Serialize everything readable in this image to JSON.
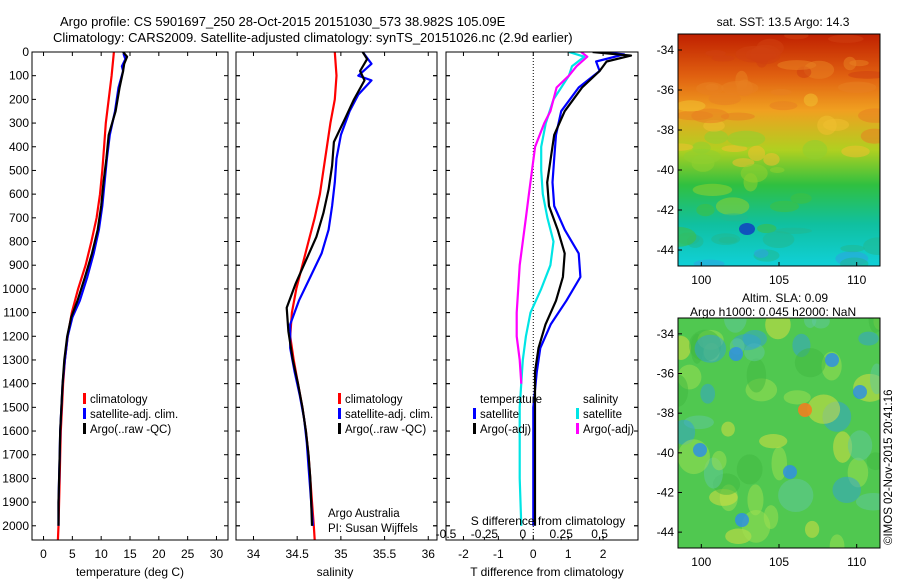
{
  "header": {
    "line1": "Argo profile: CS 5901697_250 28-Oct-2015 20151030_573 38.982S 105.09E",
    "line2": "Climatology: CARS2009. Satellite-adjusted climatology: synTS_20151026.nc (2.9d earlier)"
  },
  "side_label": "©IMOS 02-Nov-2015 20:41:16",
  "colors": {
    "climatology": "#ff0000",
    "satellite": "#0000ff",
    "argo": "#000000",
    "s_satellite": "#00e5e5",
    "s_argo": "#ff00ff"
  },
  "chart_data": [
    {
      "type": "line",
      "id": "temperature",
      "xlabel": "temperature (deg C)",
      "xlim": [
        -2,
        32
      ],
      "ylim": [
        2060,
        0
      ],
      "xticks": [
        0,
        5,
        10,
        15,
        20,
        25,
        30
      ],
      "yticks": [
        0,
        100,
        200,
        300,
        400,
        500,
        600,
        700,
        800,
        900,
        1000,
        1100,
        1200,
        1300,
        1400,
        1500,
        1600,
        1700,
        1800,
        1900,
        2000
      ],
      "legend": [
        "climatology",
        "satellite-adj. clim.",
        "Argo(..raw -QC)"
      ],
      "series": [
        {
          "name": "climatology",
          "color": "#ff0000",
          "points": [
            [
              12.2,
              0
            ],
            [
              11.8,
              100
            ],
            [
              11.3,
              200
            ],
            [
              10.8,
              300
            ],
            [
              10.5,
              400
            ],
            [
              10.2,
              500
            ],
            [
              9.8,
              600
            ],
            [
              9.2,
              700
            ],
            [
              8.3,
              800
            ],
            [
              7.3,
              900
            ],
            [
              6.0,
              1000
            ],
            [
              4.9,
              1100
            ],
            [
              4.2,
              1200
            ],
            [
              3.7,
              1300
            ],
            [
              3.4,
              1400
            ],
            [
              3.2,
              1500
            ],
            [
              3.0,
              1600
            ],
            [
              2.9,
              1700
            ],
            [
              2.8,
              1800
            ],
            [
              2.7,
              1900
            ],
            [
              2.6,
              2000
            ],
            [
              2.5,
              2060
            ]
          ]
        },
        {
          "name": "satellite-adj. clim.",
          "color": "#0000ff",
          "points": [
            [
              14.0,
              0
            ],
            [
              13.9,
              10
            ],
            [
              14.2,
              30
            ],
            [
              13.6,
              60
            ],
            [
              13.8,
              80
            ],
            [
              13.0,
              150
            ],
            [
              12.4,
              250
            ],
            [
              11.5,
              350
            ],
            [
              11.0,
              450
            ],
            [
              10.6,
              550
            ],
            [
              10.2,
              650
            ],
            [
              9.6,
              750
            ],
            [
              8.7,
              850
            ],
            [
              7.6,
              950
            ],
            [
              6.3,
              1050
            ],
            [
              5.0,
              1120
            ],
            [
              4.2,
              1200
            ],
            [
              3.7,
              1300
            ],
            [
              3.3,
              1400
            ],
            [
              3.1,
              1500
            ],
            [
              2.9,
              1600
            ],
            [
              2.8,
              1700
            ],
            [
              2.7,
              1800
            ],
            [
              2.6,
              1900
            ],
            [
              2.6,
              2000
            ]
          ]
        },
        {
          "name": "Argo(..raw -QC)",
          "color": "#000000",
          "points": [
            [
              13.8,
              0
            ],
            [
              14.5,
              20
            ],
            [
              14.0,
              50
            ],
            [
              13.8,
              80
            ],
            [
              13.2,
              150
            ],
            [
              12.5,
              250
            ],
            [
              11.3,
              350
            ],
            [
              10.9,
              450
            ],
            [
              10.4,
              550
            ],
            [
              10.0,
              650
            ],
            [
              9.4,
              750
            ],
            [
              8.4,
              850
            ],
            [
              7.2,
              950
            ],
            [
              5.9,
              1050
            ],
            [
              4.8,
              1120
            ],
            [
              4.1,
              1200
            ],
            [
              3.6,
              1300
            ],
            [
              3.3,
              1400
            ],
            [
              3.1,
              1500
            ],
            [
              2.9,
              1600
            ],
            [
              2.8,
              1700
            ],
            [
              2.7,
              1800
            ],
            [
              2.6,
              1900
            ],
            [
              2.6,
              2000
            ]
          ]
        }
      ]
    },
    {
      "type": "line",
      "id": "salinity",
      "xlabel": "salinity",
      "xlim": [
        33.8,
        36.1
      ],
      "ylim": [
        2060,
        0
      ],
      "xticks": [
        34,
        34.5,
        35,
        35.5,
        36
      ],
      "legend": [
        "climatology",
        "satellite-adj. clim.",
        "Argo(..raw -QC)"
      ],
      "annotation": [
        "Argo Australia",
        "PI: Susan Wijffels"
      ],
      "series": [
        {
          "name": "climatology",
          "color": "#ff0000",
          "points": [
            [
              34.93,
              0
            ],
            [
              34.95,
              100
            ],
            [
              34.93,
              200
            ],
            [
              34.88,
              300
            ],
            [
              34.84,
              400
            ],
            [
              34.8,
              500
            ],
            [
              34.76,
              600
            ],
            [
              34.7,
              700
            ],
            [
              34.63,
              800
            ],
            [
              34.56,
              900
            ],
            [
              34.49,
              1000
            ],
            [
              34.44,
              1100
            ],
            [
              34.42,
              1200
            ],
            [
              34.46,
              1300
            ],
            [
              34.51,
              1400
            ],
            [
              34.56,
              1500
            ],
            [
              34.6,
              1600
            ],
            [
              34.63,
              1700
            ],
            [
              34.65,
              1800
            ],
            [
              34.67,
              1900
            ],
            [
              34.69,
              2000
            ],
            [
              34.7,
              2060
            ]
          ]
        },
        {
          "name": "satellite-adj. clim.",
          "color": "#0000ff",
          "points": [
            [
              35.25,
              0
            ],
            [
              35.35,
              50
            ],
            [
              35.2,
              100
            ],
            [
              35.35,
              120
            ],
            [
              35.2,
              180
            ],
            [
              35.1,
              250
            ],
            [
              35.0,
              350
            ],
            [
              34.95,
              450
            ],
            [
              34.93,
              550
            ],
            [
              34.9,
              650
            ],
            [
              34.86,
              750
            ],
            [
              34.78,
              850
            ],
            [
              34.65,
              950
            ],
            [
              34.52,
              1050
            ],
            [
              34.42,
              1150
            ],
            [
              34.42,
              1250
            ],
            [
              34.47,
              1350
            ],
            [
              34.53,
              1450
            ],
            [
              34.58,
              1550
            ],
            [
              34.61,
              1650
            ],
            [
              34.63,
              1750
            ],
            [
              34.65,
              1850
            ],
            [
              34.67,
              1950
            ],
            [
              34.68,
              2000
            ]
          ]
        },
        {
          "name": "Argo(..raw -QC)",
          "color": "#000000",
          "points": [
            [
              35.25,
              0
            ],
            [
              35.3,
              30
            ],
            [
              35.22,
              80
            ],
            [
              35.27,
              120
            ],
            [
              35.15,
              200
            ],
            [
              35.05,
              280
            ],
            [
              34.92,
              380
            ],
            [
              34.9,
              480
            ],
            [
              34.86,
              580
            ],
            [
              34.8,
              680
            ],
            [
              34.72,
              780
            ],
            [
              34.6,
              880
            ],
            [
              34.48,
              980
            ],
            [
              34.38,
              1080
            ],
            [
              34.4,
              1180
            ],
            [
              34.45,
              1300
            ],
            [
              34.51,
              1400
            ],
            [
              34.56,
              1500
            ],
            [
              34.6,
              1600
            ],
            [
              34.63,
              1700
            ],
            [
              34.65,
              1800
            ],
            [
              34.66,
              1900
            ],
            [
              34.67,
              2000
            ]
          ]
        }
      ]
    },
    {
      "type": "line",
      "id": "difference",
      "xlabel": "T difference from climatology",
      "xlabel2": "S difference from climatology",
      "xlim": [
        -2.5,
        3.0
      ],
      "xlim_s": [
        -0.5,
        0.75
      ],
      "ylim": [
        2060,
        0
      ],
      "xticks": [
        -2,
        -1,
        0,
        1,
        2
      ],
      "xticks_s": [
        -0.5,
        -0.25,
        0,
        0.25,
        0.5
      ],
      "xticklabels_s": [
        "-0.5",
        "-0.25",
        "0",
        "0.25",
        "0.5"
      ],
      "legend_titles": [
        "temperature",
        "salinity"
      ],
      "legend": [
        "satellite",
        "Argo(-adj)",
        "satellite",
        "Argo(-adj)"
      ],
      "series": [
        {
          "name": "T satellite",
          "color": "#0000ff",
          "axis": "T",
          "points": [
            [
              1.9,
              0
            ],
            [
              2.6,
              10
            ],
            [
              1.8,
              40
            ],
            [
              1.9,
              80
            ],
            [
              1.3,
              150
            ],
            [
              0.8,
              250
            ],
            [
              0.65,
              350
            ],
            [
              0.6,
              450
            ],
            [
              0.55,
              550
            ],
            [
              0.6,
              650
            ],
            [
              0.9,
              750
            ],
            [
              1.3,
              850
            ],
            [
              1.35,
              950
            ],
            [
              0.95,
              1050
            ],
            [
              0.5,
              1150
            ],
            [
              0.2,
              1250
            ],
            [
              0.1,
              1350
            ],
            [
              0.0,
              1500
            ],
            [
              0.0,
              1700
            ],
            [
              0.0,
              2000
            ]
          ]
        },
        {
          "name": "T Argo(-adj)",
          "color": "#000000",
          "axis": "T",
          "points": [
            [
              1.7,
              0
            ],
            [
              2.8,
              15
            ],
            [
              2.1,
              40
            ],
            [
              1.9,
              80
            ],
            [
              1.4,
              150
            ],
            [
              0.9,
              250
            ],
            [
              0.6,
              350
            ],
            [
              0.5,
              450
            ],
            [
              0.4,
              550
            ],
            [
              0.45,
              650
            ],
            [
              0.7,
              750
            ],
            [
              0.9,
              850
            ],
            [
              0.85,
              950
            ],
            [
              0.65,
              1050
            ],
            [
              0.35,
              1150
            ],
            [
              0.15,
              1250
            ],
            [
              0.05,
              1350
            ],
            [
              0.05,
              1500
            ],
            [
              0.05,
              1800
            ],
            [
              0.05,
              2000
            ]
          ]
        },
        {
          "name": "S satellite",
          "color": "#00e5e5",
          "axis": "S",
          "points": [
            [
              0.3,
              0
            ],
            [
              0.4,
              20
            ],
            [
              0.32,
              60
            ],
            [
              0.3,
              100
            ],
            [
              0.2,
              200
            ],
            [
              0.15,
              300
            ],
            [
              0.12,
              400
            ],
            [
              0.12,
              500
            ],
            [
              0.13,
              600
            ],
            [
              0.16,
              700
            ],
            [
              0.2,
              800
            ],
            [
              0.18,
              900
            ],
            [
              0.12,
              1000
            ],
            [
              0.05,
              1100
            ],
            [
              0.02,
              1200
            ],
            [
              0.0,
              1300
            ],
            [
              -0.02,
              1500
            ],
            [
              -0.02,
              1800
            ],
            [
              -0.01,
              2000
            ]
          ]
        },
        {
          "name": "S Argo(-adj)",
          "color": "#ff00ff",
          "axis": "S",
          "points": [
            [
              0.38,
              0
            ],
            [
              0.42,
              20
            ],
            [
              0.35,
              60
            ],
            [
              0.3,
              100
            ],
            [
              0.22,
              150
            ],
            [
              0.18,
              250
            ],
            [
              0.14,
              300
            ],
            [
              0.08,
              400
            ],
            [
              0.06,
              500
            ],
            [
              0.04,
              600
            ],
            [
              0.02,
              700
            ],
            [
              0.0,
              800
            ],
            [
              -0.02,
              900
            ],
            [
              -0.03,
              1000
            ],
            [
              -0.04,
              1100
            ],
            [
              -0.04,
              1200
            ],
            [
              -0.02,
              1300
            ],
            [
              -0.01,
              1400
            ]
          ]
        }
      ]
    },
    {
      "type": "heatmap",
      "id": "sst_map",
      "title": "sat. SST: 13.5 Argo: 14.3",
      "xticks": [
        100,
        105,
        110
      ],
      "yticks": [
        -34,
        -36,
        -38,
        -40,
        -42,
        -44
      ],
      "xlim": [
        98.5,
        111.5
      ],
      "ylim": [
        -44.8,
        -33.2
      ]
    },
    {
      "type": "heatmap",
      "id": "sla_map",
      "title": "Altim. SLA: 0.09",
      "subtitle": "Argo h1000: 0.045 h2000: NaN",
      "xticks": [
        100,
        105,
        110
      ],
      "yticks": [
        -34,
        -36,
        -38,
        -40,
        -42,
        -44
      ],
      "xlim": [
        98.5,
        111.5
      ],
      "ylim": [
        -44.8,
        -33.2
      ]
    }
  ]
}
